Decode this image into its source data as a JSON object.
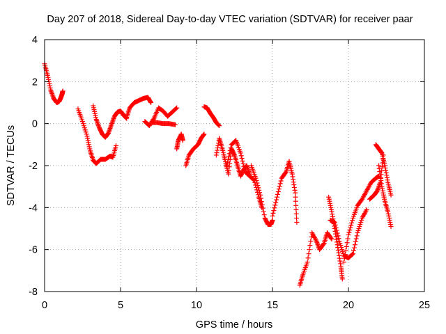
{
  "chart_data": {
    "type": "scatter",
    "title": "Day 207 of 2018, Sidereal Day-to-day VTEC variation (SDTVAR) for receiver paar",
    "xlabel": "GPS time / hours",
    "ylabel": "SDTVAR / TECUs",
    "xlim": [
      0,
      25
    ],
    "ylim": [
      -8,
      4
    ],
    "xticks": [
      0,
      5,
      10,
      15,
      20,
      25
    ],
    "yticks": [
      -8,
      -6,
      -4,
      -2,
      0,
      2,
      4
    ],
    "grid": true,
    "marker": "+",
    "color": "#ff0000",
    "series": [
      {
        "name": "SDTVAR",
        "segments": [
          {
            "x": [
              0.0,
              0.2,
              0.4,
              0.6,
              0.8,
              0.95,
              1.05,
              1.15,
              1.2
            ],
            "y": [
              2.85,
              2.3,
              1.6,
              1.2,
              1.0,
              1.05,
              1.2,
              1.4,
              1.55
            ]
          },
          {
            "x": [
              2.2,
              2.5,
              2.8,
              3.0,
              3.2,
              3.4,
              3.7,
              4.0,
              4.3,
              4.5,
              4.7
            ],
            "y": [
              0.7,
              0.1,
              -0.6,
              -1.3,
              -1.75,
              -1.9,
              -1.7,
              -1.7,
              -1.55,
              -1.6,
              -1.05
            ]
          },
          {
            "x": [
              3.2,
              3.4,
              3.6,
              3.8,
              4.0,
              4.2,
              4.4,
              4.6,
              4.8,
              5.0,
              5.2,
              5.4
            ],
            "y": [
              0.85,
              0.2,
              -0.2,
              -0.5,
              -0.65,
              -0.45,
              -0.05,
              0.35,
              0.55,
              0.6,
              0.4,
              0.25
            ]
          },
          {
            "x": [
              5.4,
              5.6,
              5.9,
              6.2,
              6.5,
              6.8,
              7.0
            ],
            "y": [
              0.3,
              0.75,
              1.0,
              1.1,
              1.2,
              1.25,
              1.0
            ]
          },
          {
            "x": [
              6.6,
              6.9,
              7.2,
              7.5,
              7.8,
              8.1,
              8.4,
              8.7
            ],
            "y": [
              0.1,
              -0.1,
              0.25,
              0.75,
              0.6,
              0.35,
              0.55,
              0.75
            ]
          },
          {
            "x": [
              7.0,
              7.4,
              7.8,
              8.2,
              8.6
            ],
            "y": [
              0.05,
              0.05,
              0.0,
              0.0,
              -0.05
            ]
          },
          {
            "x": [
              8.7,
              8.8,
              9.0,
              9.1
            ],
            "y": [
              -1.2,
              -0.8,
              -0.5,
              -0.8
            ]
          },
          {
            "x": [
              9.3,
              9.5,
              9.8,
              10.1,
              10.3,
              10.5
            ],
            "y": [
              -2.0,
              -1.5,
              -1.2,
              -1.0,
              -0.7,
              -0.5
            ]
          },
          {
            "x": [
              10.5,
              10.7,
              10.9,
              11.1,
              11.3,
              11.5
            ],
            "y": [
              0.8,
              0.75,
              0.5,
              0.3,
              0.05,
              -0.1
            ]
          },
          {
            "x": [
              11.3,
              11.5,
              11.7,
              11.9,
              12.1,
              12.3,
              12.5,
              12.7,
              12.9,
              13.1,
              13.3,
              13.5
            ],
            "y": [
              -1.5,
              -0.7,
              -1.2,
              -1.8,
              -2.4,
              -1.2,
              -1.5,
              -2.0,
              -2.5,
              -2.2,
              -2.0,
              -2.4
            ]
          },
          {
            "x": [
              12.0,
              12.3,
              12.6,
              12.9,
              13.2,
              13.5,
              13.8,
              14.1,
              14.3
            ],
            "y": [
              -2.0,
              -1.0,
              -0.8,
              -1.4,
              -2.3,
              -2.5,
              -2.7,
              -3.5,
              -4.0
            ]
          },
          {
            "x": [
              13.6,
              13.9,
              14.2,
              14.5,
              14.7,
              14.9,
              15.0
            ],
            "y": [
              -2.0,
              -2.6,
              -3.4,
              -4.5,
              -4.8,
              -4.8,
              -4.6
            ]
          },
          {
            "x": [
              15.0,
              15.3,
              15.6,
              15.9,
              16.1
            ],
            "y": [
              -4.4,
              -3.5,
              -2.6,
              -2.3,
              -1.8
            ]
          },
          {
            "x": [
              16.1,
              16.3,
              16.5,
              16.6
            ],
            "y": [
              -1.8,
              -2.4,
              -3.3,
              -4.7
            ]
          },
          {
            "x": [
              16.8,
              17.0,
              17.3,
              17.6,
              17.9,
              18.1,
              18.4,
              18.6,
              18.9
            ],
            "y": [
              -7.7,
              -7.2,
              -6.6,
              -5.2,
              -5.6,
              -6.0,
              -5.7,
              -5.2,
              -5.5
            ]
          },
          {
            "x": [
              18.7,
              18.9,
              19.1,
              19.3,
              19.5,
              19.6
            ],
            "y": [
              -3.5,
              -4.2,
              -5.0,
              -5.9,
              -6.8,
              -7.4
            ]
          },
          {
            "x": [
              18.8,
              19.1,
              19.4,
              19.7,
              20.0,
              20.3,
              20.6,
              20.9,
              21.2
            ],
            "y": [
              -4.6,
              -4.7,
              -5.6,
              -6.3,
              -6.4,
              -6.2,
              -5.2,
              -4.5,
              -4.1
            ]
          },
          {
            "x": [
              19.7,
              20.0,
              20.3,
              20.6,
              20.9,
              21.2,
              21.5,
              21.8,
              22.0
            ],
            "y": [
              -6.6,
              -5.3,
              -4.5,
              -3.9,
              -3.6,
              -3.2,
              -2.8,
              -2.6,
              -2.5
            ]
          },
          {
            "x": [
              21.4,
              21.7,
              21.9,
              22.1,
              22.3
            ],
            "y": [
              -3.6,
              -3.4,
              -3.2,
              -2.8,
              -1.5
            ]
          },
          {
            "x": [
              21.8,
              22.0,
              22.2,
              22.4,
              22.6,
              22.8
            ],
            "y": [
              -1.0,
              -1.2,
              -1.4,
              -2.0,
              -2.8,
              -3.4
            ]
          },
          {
            "x": [
              22.0,
              22.2,
              22.4,
              22.6,
              22.8
            ],
            "y": [
              -2.0,
              -3.0,
              -3.7,
              -4.2,
              -4.9
            ]
          }
        ]
      }
    ]
  }
}
